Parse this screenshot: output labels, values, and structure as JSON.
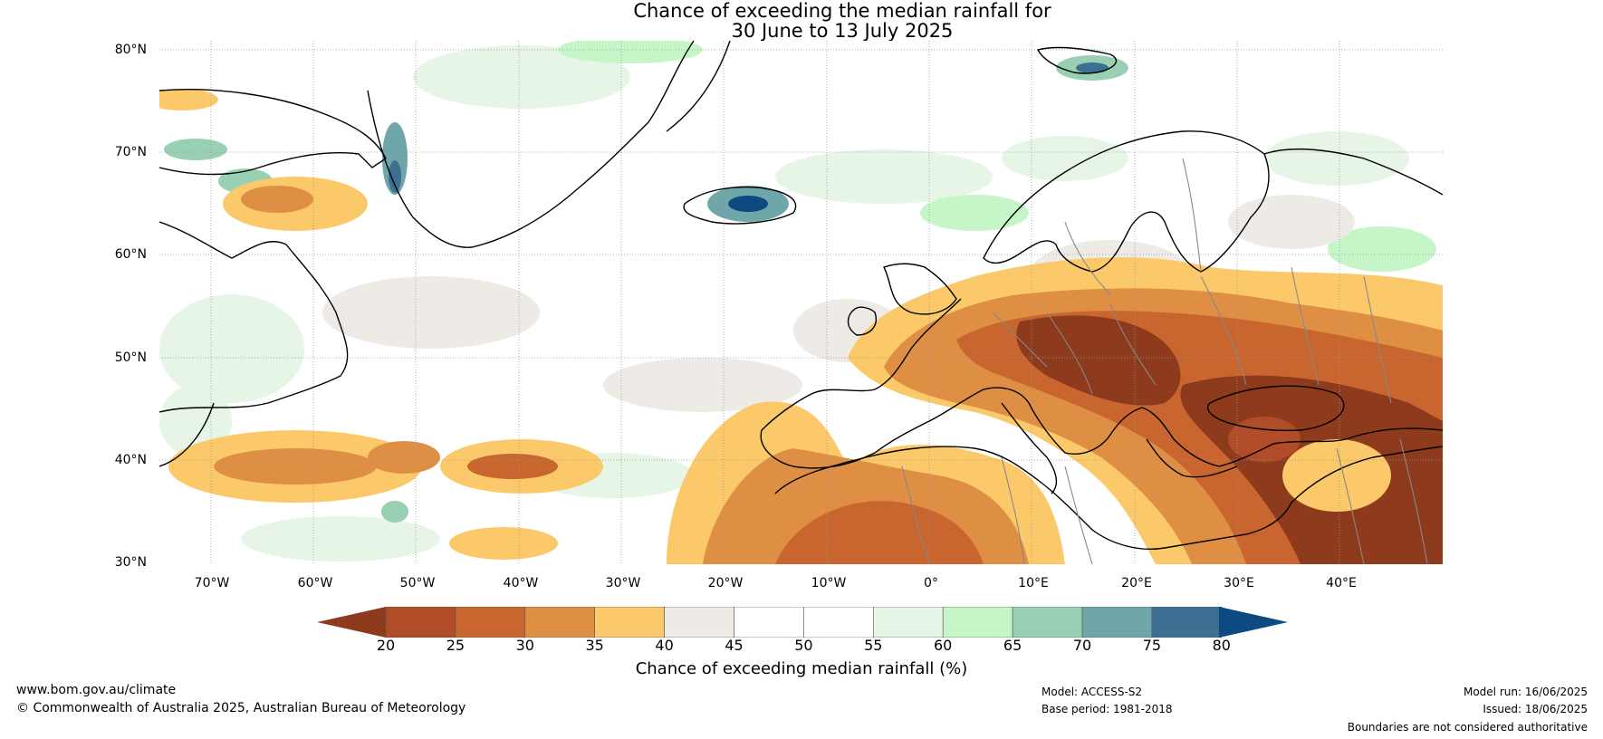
{
  "title": {
    "line1": "Chance of exceeding the median rainfall for",
    "line2": "30 June to 13 July 2025"
  },
  "map": {
    "lat_labels": [
      "80°N",
      "70°N",
      "60°N",
      "50°N",
      "40°N",
      "30°N"
    ],
    "lon_labels": [
      "70°W",
      "60°W",
      "50°W",
      "40°W",
      "30°W",
      "20°W",
      "10°W",
      "0°",
      "10°E",
      "20°E",
      "30°E",
      "40°E"
    ],
    "lat_range": [
      30,
      81
    ],
    "lon_range": [
      -75,
      50
    ]
  },
  "colorbar": {
    "ticks": [
      "20",
      "25",
      "30",
      "35",
      "40",
      "45",
      "50",
      "55",
      "60",
      "65",
      "70",
      "75",
      "80"
    ],
    "colors": [
      "#8e3a1c",
      "#b04c27",
      "#c9652f",
      "#df8f44",
      "#fcc96a",
      "#eeebe6",
      "#ffffff",
      "#ffffff",
      "#e6f5e6",
      "#c6f5c8",
      "#99cfb3",
      "#6fa6aa",
      "#3d6f92",
      "#0d4a82"
    ],
    "label": "Chance of exceeding median rainfall (%)"
  },
  "footer": {
    "website": "www.bom.gov.au/climate",
    "copyright": "© Commonwealth of Australia 2025, Australian Bureau of Meteorology",
    "model": "Model: ACCESS-S2",
    "base_period": "Base period: 1981-2018",
    "model_run": "Model run: 16/06/2025",
    "issued": "Issued: 18/06/2025",
    "disclaimer": "Boundaries are not considered authoritative"
  }
}
